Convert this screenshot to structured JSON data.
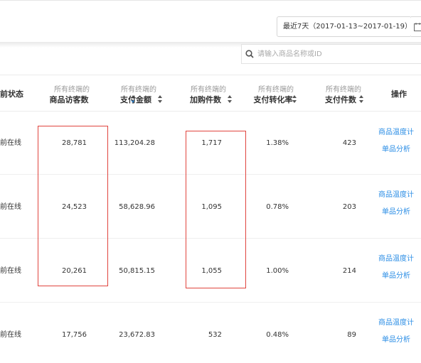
{
  "filter": {
    "date_range_label": "最近7天（2017-01-13~2017-01-19）",
    "calendar_icon": "calendar-icon"
  },
  "search": {
    "placeholder": "请输入商品名称或ID",
    "icon": "search-icon"
  },
  "table": {
    "headers": {
      "status": "前状态",
      "visitors_l1": "所有终端的",
      "visitors_l2": "商品访客数",
      "pay_amount_l1": "所有终端的",
      "pay_amount_l2": "支付金额",
      "cart_l1": "所有终端的",
      "cart_l2": "加购件数",
      "conv_l1": "所有终端的",
      "conv_l2": "支付转化率",
      "pay_items_l1": "所有终端的",
      "pay_items_l2": "支付件数",
      "ops": "操作"
    },
    "rows": [
      {
        "status": "前在线",
        "visitors": "28,781",
        "pay_amount": "113,204.28",
        "cart": "1,717",
        "conv": "1.38%",
        "pay_items": "423",
        "op1": "商品温度计",
        "op2": "单品分析"
      },
      {
        "status": "前在线",
        "visitors": "24,523",
        "pay_amount": "58,628.96",
        "cart": "1,095",
        "conv": "0.78%",
        "pay_items": "203",
        "op1": "商品温度计",
        "op2": "单品分析"
      },
      {
        "status": "前在线",
        "visitors": "20,261",
        "pay_amount": "50,815.15",
        "cart": "1,055",
        "conv": "1.00%",
        "pay_items": "214",
        "op1": "商品温度计",
        "op2": "单品分析"
      },
      {
        "status": "前在线",
        "visitors": "17,756",
        "pay_amount": "23,672.83",
        "cart": "532",
        "conv": "0.48%",
        "pay_items": "89",
        "op1": "商品温度计",
        "op2": "单品分析"
      }
    ]
  },
  "colors": {
    "link": "#2a8de5",
    "highlight_box": "#e0443e",
    "sort_active": "#2a8de5"
  }
}
